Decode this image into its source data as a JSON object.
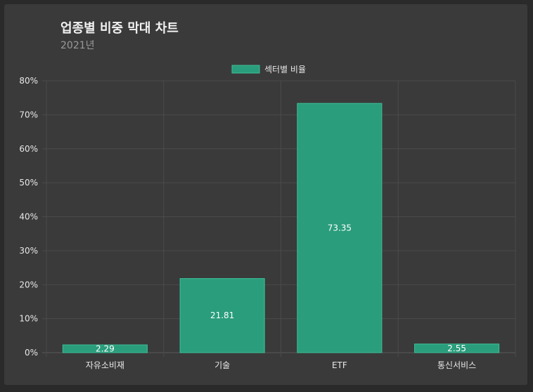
{
  "chart_data": {
    "type": "bar",
    "title": "업종별 비중 막대 차트",
    "subtitle": "2021년",
    "categories": [
      "자유소비재",
      "기술",
      "ETF",
      "통신서비스"
    ],
    "series": [
      {
        "name": "섹터별 비율",
        "values": [
          2.29,
          21.81,
          73.35,
          2.55
        ]
      }
    ],
    "data_labels": [
      "2.29",
      "21.81",
      "73.35",
      "2.55"
    ],
    "ylim": [
      0,
      80
    ],
    "yticks": [
      0,
      10,
      20,
      30,
      40,
      50,
      60,
      70,
      80
    ],
    "ytick_labels": [
      "0%",
      "10%",
      "20%",
      "30%",
      "40%",
      "50%",
      "60%",
      "70%",
      "80%"
    ],
    "grid": true,
    "legend_position": "top-center",
    "colors": {
      "bar": "#2a9d7c",
      "bar_border": "#3dbf97",
      "grid": "#4a4a4a",
      "background": "#3a3a3a"
    }
  }
}
